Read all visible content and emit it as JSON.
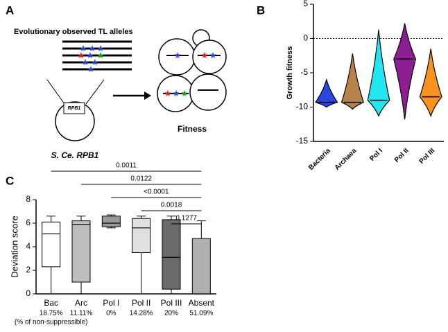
{
  "panel_labels": [
    "A",
    "B",
    "C"
  ],
  "diagram": {
    "title": "Evolutionary observed TL alleles",
    "gene_box": "RPB1",
    "source_label": "S. Ce. RPB1",
    "target_label": "Fitness"
  },
  "chart_data": [
    {
      "type": "violin",
      "ylabel": "Growth fitness",
      "categories": [
        "Bacteria",
        "Archaea",
        "Pol I",
        "Pol II",
        "Pol III"
      ],
      "colors": [
        "#2747e0",
        "#b8824a",
        "#22e6f0",
        "#8e1e94",
        "#f7931e"
      ],
      "median": [
        -9.3,
        -9.3,
        -9,
        -3,
        -8.5
      ],
      "min": [
        -10,
        -10.3,
        -11.3,
        -11.8,
        -11.3
      ],
      "max": [
        -6,
        -2.2,
        1.3,
        2.2,
        -1.5
      ],
      "ylim": [
        -15,
        5
      ],
      "yticks": [
        -15,
        -10,
        -5,
        0,
        5
      ],
      "reference_line": 0
    },
    {
      "type": "box",
      "ylabel": "Deviation score",
      "categories": [
        "Bac",
        "Arc",
        "Pol I",
        "Pol II",
        "Pol III",
        "Absent"
      ],
      "percent_labels": [
        "18.75%",
        "11.11%",
        "0%",
        "14.28%",
        "20%",
        "51.09%"
      ],
      "percent_note": "(% of non-suppressible)",
      "colors": [
        "#ffffff",
        "#bdbdbd",
        "#9a9a9a",
        "#e0e0e0",
        "#6a6a6a",
        "#b0b0b0"
      ],
      "min": [
        0,
        0,
        5.6,
        0,
        0,
        0
      ],
      "q1": [
        2.3,
        1.0,
        5.7,
        3.5,
        0.4,
        0
      ],
      "median": [
        5.1,
        5.9,
        6.0,
        5.6,
        3.1,
        0
      ],
      "q3": [
        6.1,
        6.2,
        6.6,
        6.4,
        6.3,
        4.7
      ],
      "max": [
        6.6,
        6.6,
        6.7,
        6.6,
        6.6,
        6.2
      ],
      "p_values": [
        "0.0011",
        "0.0122",
        "<0.0001",
        "0.0018",
        "0.1277"
      ],
      "ylim": [
        0,
        8
      ],
      "yticks": [
        0,
        2,
        4,
        6,
        8
      ]
    }
  ]
}
